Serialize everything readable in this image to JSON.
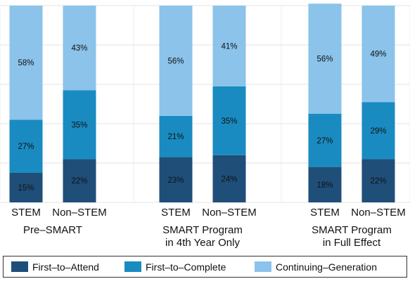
{
  "chart_data": {
    "type": "bar",
    "stacked": true,
    "percent": true,
    "ylim": [
      0,
      100
    ],
    "grid": true,
    "legend_position": "bottom",
    "categories": [
      "STEM",
      "Non–STEM",
      "STEM",
      "Non–STEM",
      "STEM",
      "Non–STEM"
    ],
    "groups": [
      {
        "label_lines": [
          "Pre–SMART"
        ]
      },
      {
        "label_lines": [
          "SMART Program",
          "in 4th Year Only"
        ]
      },
      {
        "label_lines": [
          "SMART Program",
          "in Full Effect"
        ]
      }
    ],
    "series": [
      {
        "name": "First–to–Attend",
        "color": "#1f4e79",
        "values": [
          15,
          22,
          23,
          24,
          18,
          22
        ],
        "labels": [
          "15%",
          "22%",
          "23%",
          "24%",
          "18%",
          "22%"
        ]
      },
      {
        "name": "First–to–Complete",
        "color": "#1a8bc0",
        "values": [
          27,
          35,
          21,
          35,
          27,
          29
        ],
        "labels": [
          "27%",
          "35%",
          "21%",
          "35%",
          "27%",
          "29%"
        ]
      },
      {
        "name": "Continuing–Generation",
        "color": "#8bc3ea",
        "values": [
          58,
          43,
          56,
          41,
          56,
          49
        ],
        "labels": [
          "58%",
          "43%",
          "56%",
          "41%",
          "56%",
          "49%"
        ]
      }
    ]
  }
}
